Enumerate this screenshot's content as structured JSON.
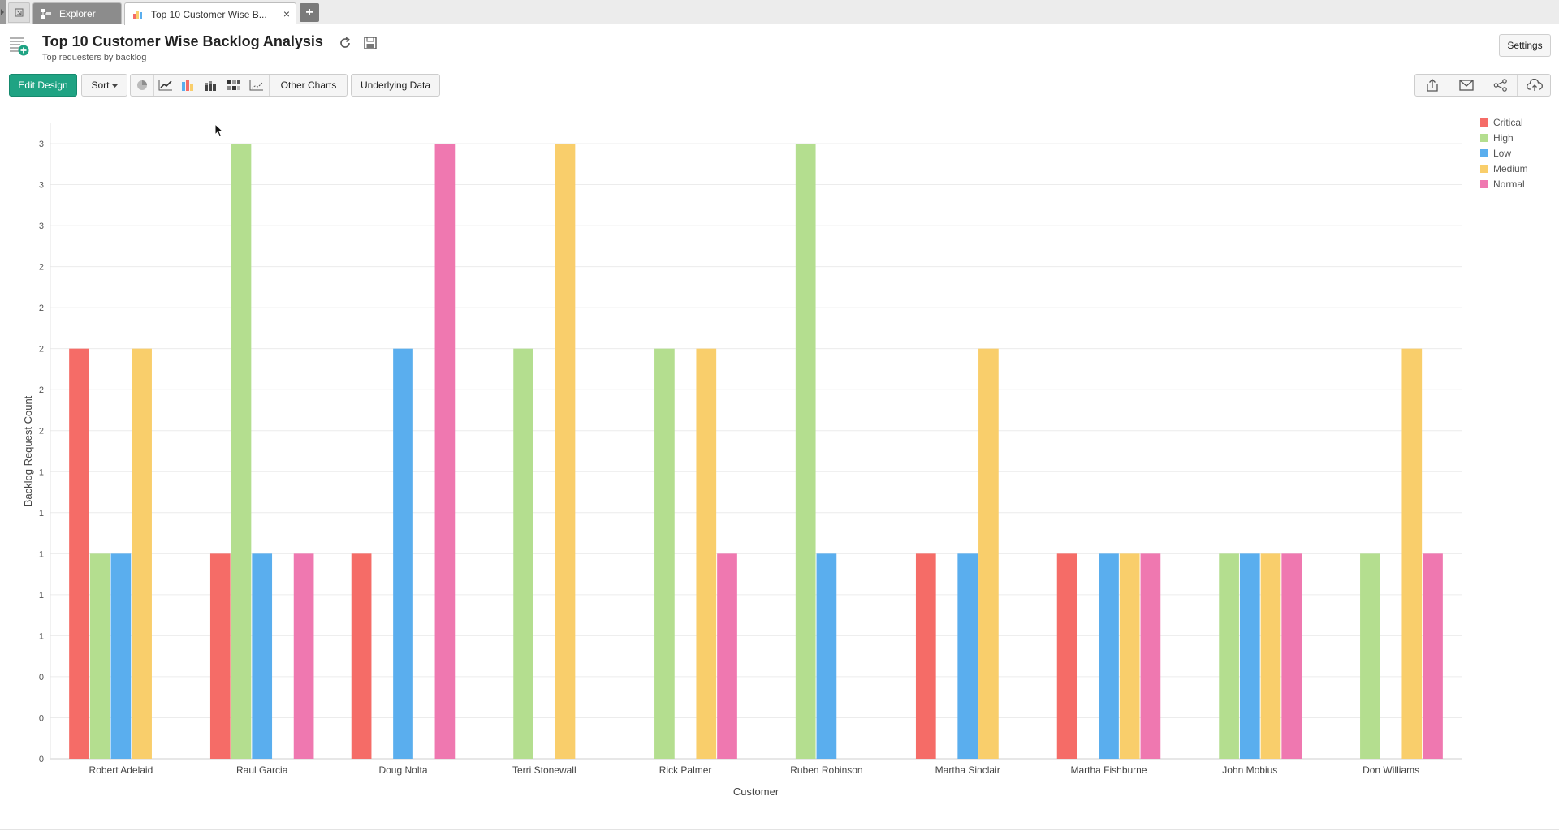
{
  "tabs": {
    "explorer_label": "Explorer",
    "active_label": "Top 10 Customer Wise B...",
    "close_glyph": "×",
    "add_glyph": "+"
  },
  "header": {
    "title": "Top 10 Customer Wise Backlog Analysis",
    "subtitle": "Top requesters by backlog",
    "settings_label": "Settings"
  },
  "toolbar": {
    "edit_label": "Edit Design",
    "sort_label": "Sort",
    "other_charts_label": "Other Charts",
    "underlying_label": "Underlying Data"
  },
  "chart_data": {
    "type": "bar",
    "categories": [
      "Robert Adelaid",
      "Raul Garcia",
      "Doug Nolta",
      "Terri Stonewall",
      "Rick Palmer",
      "Ruben Robinson",
      "Martha Sinclair",
      "Martha Fishburne",
      "John Mobius",
      "Don Williams"
    ],
    "series": [
      {
        "name": "Critical",
        "color": "#f56c67",
        "values": [
          2,
          1,
          1,
          0,
          0,
          0,
          1,
          1,
          0,
          0
        ]
      },
      {
        "name": "High",
        "color": "#b4de8f",
        "values": [
          1,
          3,
          0,
          2,
          2,
          3,
          0,
          0,
          1,
          1
        ]
      },
      {
        "name": "Low",
        "color": "#5aaeee",
        "values": [
          1,
          1,
          2,
          0,
          0,
          1,
          1,
          1,
          1,
          0
        ]
      },
      {
        "name": "Medium",
        "color": "#f9ce6b",
        "values": [
          2,
          0,
          0,
          3,
          2,
          0,
          2,
          1,
          1,
          2
        ]
      },
      {
        "name": "Normal",
        "color": "#ef78b0",
        "values": [
          0,
          1,
          3,
          0,
          1,
          0,
          0,
          1,
          1,
          1
        ]
      }
    ],
    "ylim": [
      0,
      3
    ],
    "y_ticks": [
      {
        "v": 0,
        "label": "0"
      },
      {
        "v": 0.2,
        "label": "0"
      },
      {
        "v": 0.4,
        "label": "0"
      },
      {
        "v": 0.6,
        "label": "1"
      },
      {
        "v": 0.8,
        "label": "1"
      },
      {
        "v": 1.0,
        "label": "1"
      },
      {
        "v": 1.2,
        "label": "1"
      },
      {
        "v": 1.4,
        "label": "1"
      },
      {
        "v": 1.6,
        "label": "2"
      },
      {
        "v": 1.8,
        "label": "2"
      },
      {
        "v": 2.0,
        "label": "2"
      },
      {
        "v": 2.2,
        "label": "2"
      },
      {
        "v": 2.4,
        "label": "2"
      },
      {
        "v": 2.6,
        "label": "3"
      },
      {
        "v": 2.8,
        "label": "3"
      },
      {
        "v": 3.0,
        "label": "3"
      }
    ],
    "xlabel": "Customer",
    "ylabel": "Backlog Request Count",
    "grid": true,
    "legend_position": "top-right"
  }
}
